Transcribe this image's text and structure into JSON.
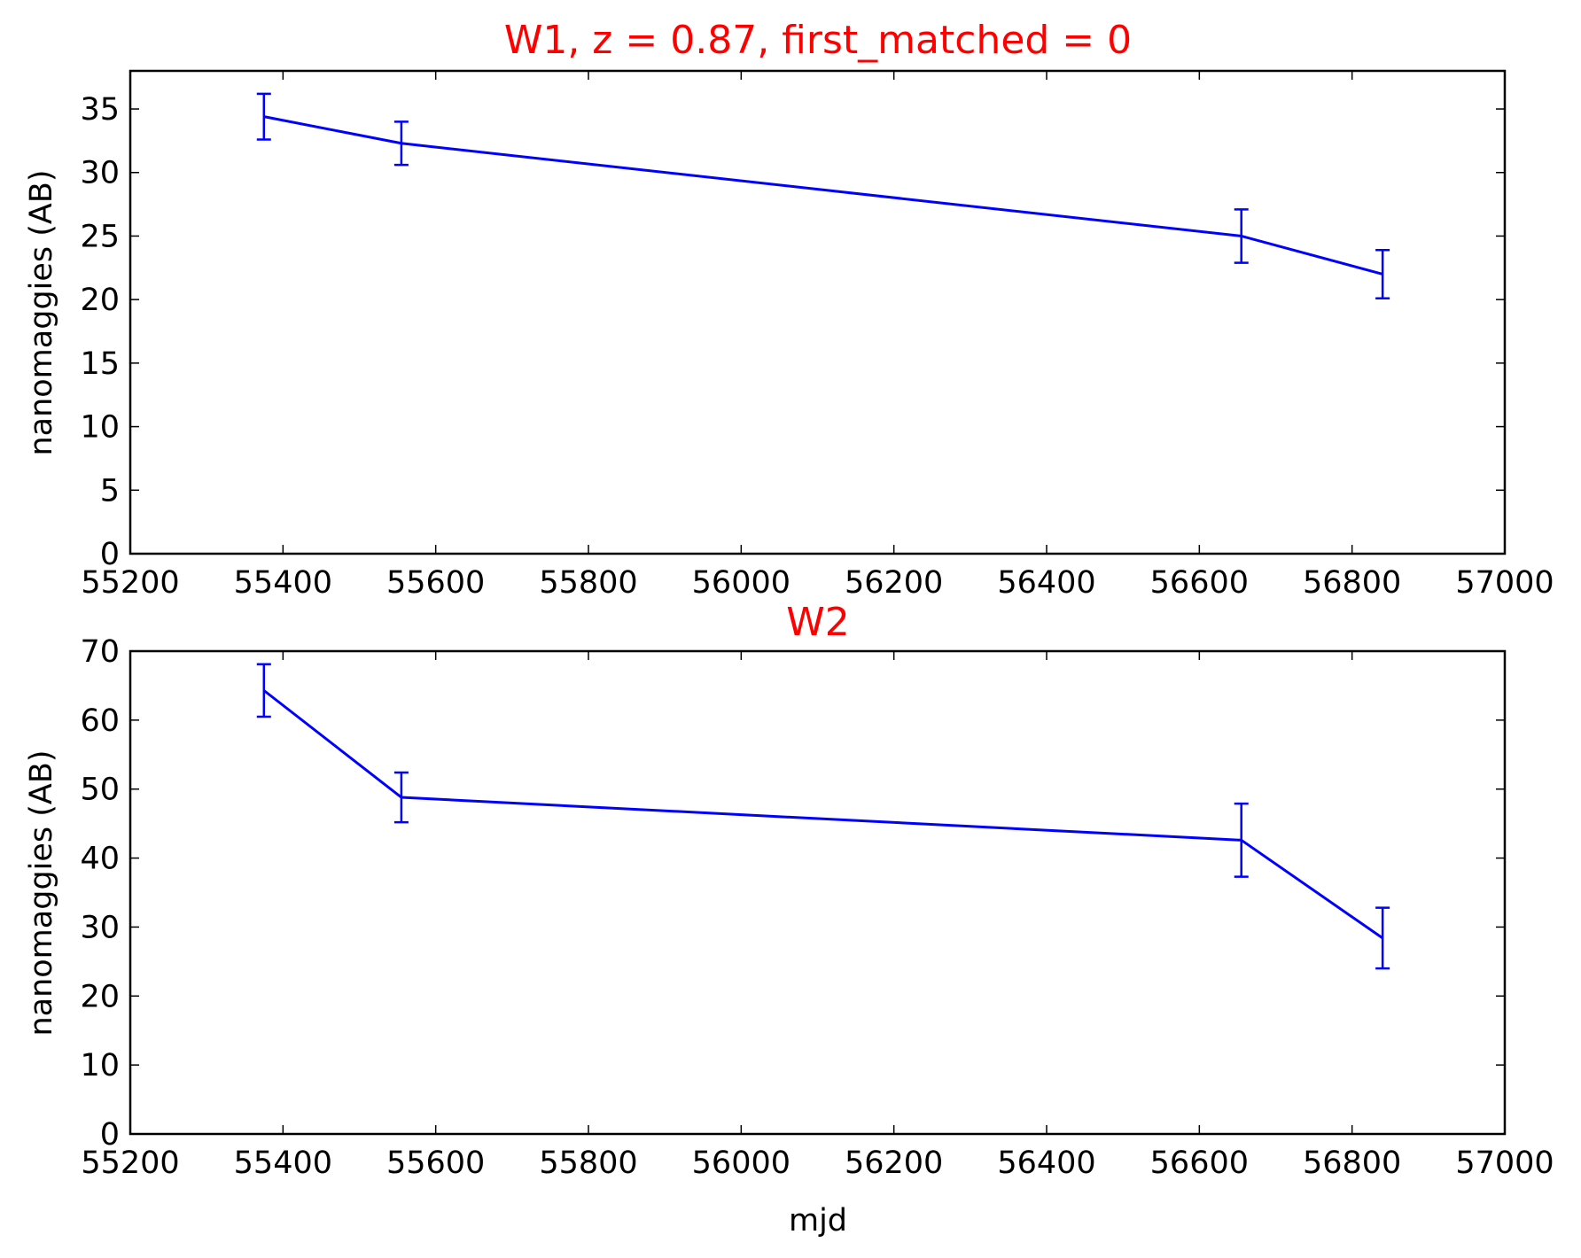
{
  "chart_data": [
    {
      "type": "line",
      "title": "W1, z = 0.87, first_matched = 0",
      "xlabel": "",
      "ylabel": "nanomaggies (AB)",
      "xlim": [
        55200,
        57000
      ],
      "ylim": [
        0,
        38
      ],
      "xticks": [
        55200,
        55400,
        55600,
        55800,
        56000,
        56200,
        56400,
        56600,
        56800,
        57000
      ],
      "yticks": [
        0,
        5,
        10,
        15,
        20,
        25,
        30,
        35
      ],
      "series": [
        {
          "x": [
            55375,
            55555,
            56655,
            56840
          ],
          "y": [
            34.4,
            32.3,
            25.0,
            22.0
          ],
          "yerr": [
            1.8,
            1.7,
            2.1,
            1.9
          ],
          "color": "#0000ff"
        }
      ]
    },
    {
      "type": "line",
      "title": "W2",
      "xlabel": "mjd",
      "ylabel": "nanomaggies (AB)",
      "xlim": [
        55200,
        57000
      ],
      "ylim": [
        0,
        70
      ],
      "xticks": [
        55200,
        55400,
        55600,
        55800,
        56000,
        56200,
        56400,
        56600,
        56800,
        57000
      ],
      "yticks": [
        0,
        10,
        20,
        30,
        40,
        50,
        60,
        70
      ],
      "series": [
        {
          "x": [
            55375,
            55555,
            56655,
            56840
          ],
          "y": [
            64.3,
            48.8,
            42.6,
            28.4
          ],
          "yerr": [
            3.8,
            3.6,
            5.3,
            4.4
          ],
          "color": "#0000ff"
        }
      ]
    }
  ]
}
